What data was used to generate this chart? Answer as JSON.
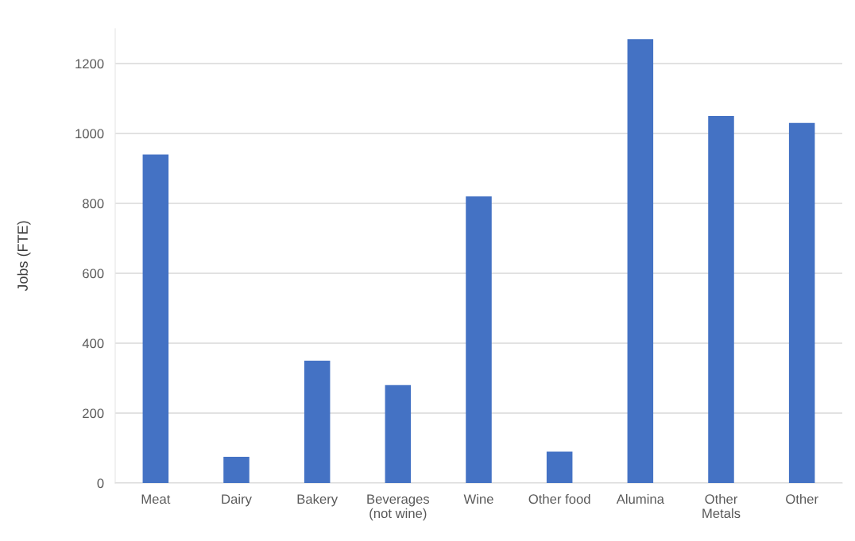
{
  "chart_data": {
    "type": "bar",
    "ylabel": "Jobs (FTE)",
    "categories": [
      "Meat",
      "Dairy",
      "Bakery",
      "Beverages\n(not wine)",
      "Wine",
      "Other food",
      "Alumina",
      "Other\nMetals",
      "Other"
    ],
    "values": [
      940,
      75,
      350,
      280,
      820,
      90,
      1270,
      1050,
      1030
    ],
    "color": "#4472c4",
    "ylim": [
      0,
      1300
    ],
    "yticks": [
      0,
      200,
      400,
      600,
      800,
      1000,
      1200
    ],
    "grid": "y",
    "legend": false
  }
}
